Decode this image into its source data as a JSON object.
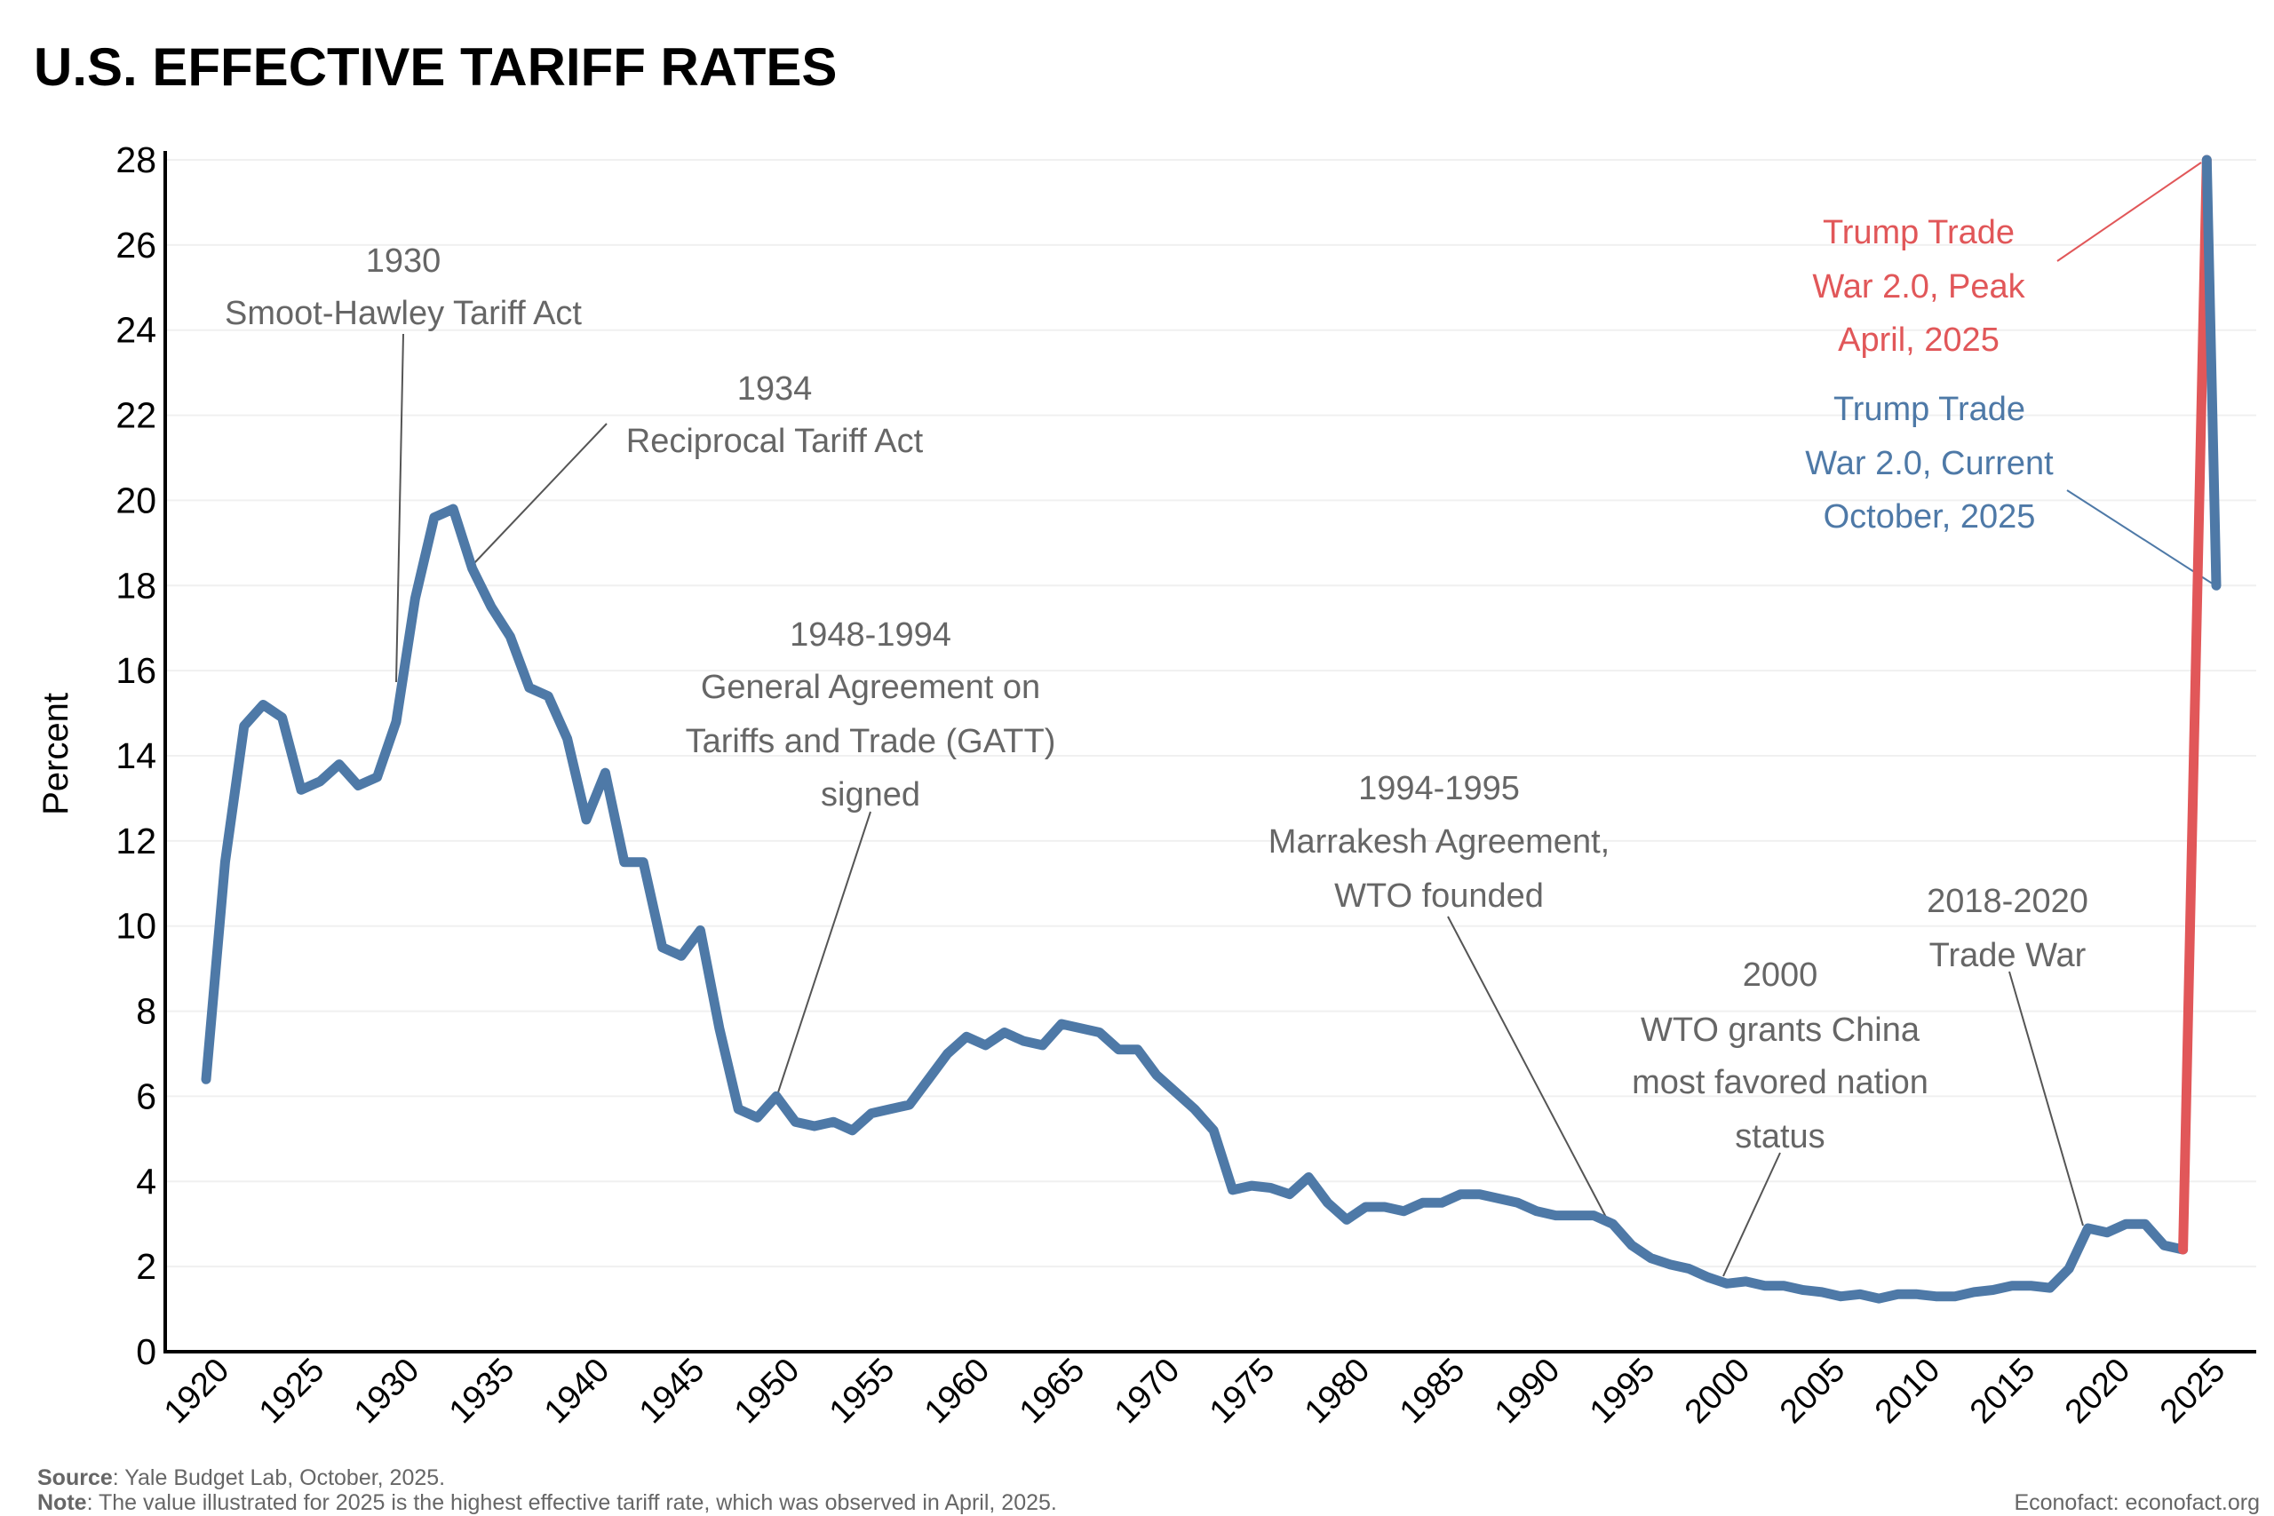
{
  "chart_data": {
    "type": "line",
    "title": "U.S. EFFECTIVE TARIFF RATES",
    "xlabel": "",
    "ylabel": "Percent",
    "ylim": [
      0,
      28
    ],
    "xlim": [
      1920,
      2025
    ],
    "y_ticks": [
      "0",
      "2",
      "4",
      "6",
      "8",
      "10",
      "12",
      "14",
      "16",
      "18",
      "20",
      "22",
      "24",
      "26",
      "28"
    ],
    "x_ticks": [
      "1920",
      "1925",
      "1930",
      "1935",
      "1940",
      "1945",
      "1950",
      "1955",
      "1960",
      "1965",
      "1970",
      "1975",
      "1980",
      "1985",
      "1990",
      "1995",
      "2000",
      "2005",
      "2010",
      "2015",
      "2020",
      "2025"
    ],
    "grid": "horizontal",
    "colors": {
      "historical": "#4e79a7",
      "peak": "#e15759",
      "current": "#4e79a7"
    },
    "series": [
      {
        "key": "historical",
        "x": [
          1920,
          1921,
          1922,
          1923,
          1924,
          1925,
          1926,
          1927,
          1928,
          1929,
          1930,
          1931,
          1932,
          1933,
          1934,
          1935,
          1936,
          1937,
          1938,
          1939,
          1940,
          1941,
          1942,
          1943,
          1944,
          1945,
          1946,
          1947,
          1948,
          1949,
          1950,
          1951,
          1952,
          1953,
          1954,
          1955,
          1956,
          1957,
          1958,
          1959,
          1960,
          1961,
          1962,
          1963,
          1964,
          1965,
          1966,
          1967,
          1968,
          1969,
          1970,
          1971,
          1972,
          1973,
          1974,
          1975,
          1976,
          1977,
          1978,
          1979,
          1980,
          1981,
          1982,
          1983,
          1984,
          1985,
          1986,
          1987,
          1988,
          1989,
          1990,
          1991,
          1992,
          1993,
          1994,
          1995,
          1996,
          1997,
          1998,
          1999,
          2000,
          2001,
          2002,
          2003,
          2004,
          2005,
          2006,
          2007,
          2008,
          2009,
          2010,
          2011,
          2012,
          2013,
          2014,
          2015,
          2016,
          2017,
          2018,
          2019,
          2020,
          2021,
          2022,
          2023,
          2024
        ],
        "y": [
          6.4,
          11.5,
          14.7,
          15.2,
          14.9,
          13.2,
          13.4,
          13.8,
          13.3,
          13.5,
          14.8,
          17.7,
          19.6,
          19.8,
          18.4,
          17.5,
          16.8,
          15.6,
          15.4,
          14.4,
          12.5,
          13.6,
          11.5,
          11.5,
          9.5,
          9.3,
          9.9,
          7.6,
          5.7,
          5.5,
          6.0,
          5.4,
          5.3,
          5.4,
          5.2,
          5.6,
          5.7,
          5.8,
          6.4,
          7.0,
          7.4,
          7.2,
          7.5,
          7.3,
          7.2,
          7.7,
          7.6,
          7.5,
          7.1,
          7.1,
          6.5,
          6.1,
          5.7,
          5.2,
          3.8,
          3.9,
          3.85,
          3.7,
          4.1,
          3.5,
          3.1,
          3.4,
          3.4,
          3.3,
          3.5,
          3.5,
          3.7,
          3.7,
          3.6,
          3.5,
          3.3,
          3.2,
          3.2,
          3.2,
          3.0,
          2.5,
          2.2,
          2.05,
          1.95,
          1.75,
          1.6,
          1.65,
          1.55,
          1.55,
          1.45,
          1.4,
          1.3,
          1.35,
          1.25,
          1.35,
          1.35,
          1.3,
          1.3,
          1.4,
          1.45,
          1.55,
          1.55,
          1.5,
          1.95,
          2.9,
          2.8,
          3.0,
          3.0,
          2.5,
          2.4
        ]
      },
      {
        "key": "peak",
        "x": [
          2024,
          2025.25
        ],
        "y": [
          2.4,
          28.0
        ]
      },
      {
        "key": "current",
        "x": [
          2025.25,
          2025.75
        ],
        "y": [
          28.0,
          18.0
        ]
      }
    ],
    "annotations": {
      "smoot": {
        "lines": [
          "1930",
          "Smoot-Hawley Tariff Act"
        ]
      },
      "reciprocal": {
        "lines": [
          "1934",
          "Reciprocal Tariff Act"
        ]
      },
      "gatt": {
        "lines": [
          "1948-1994",
          "General Agreement on",
          "Tariffs and Trade (GATT)",
          "signed"
        ]
      },
      "wto": {
        "lines": [
          "1994-1995",
          "Marrakesh Agreement,",
          "WTO founded"
        ]
      },
      "china": {
        "lines": [
          "2000",
          "WTO grants China",
          "most favored nation",
          "status"
        ]
      },
      "tradewar": {
        "lines": [
          "2018-2020",
          "Trade War"
        ]
      },
      "peak": {
        "lines": [
          "Trump Trade",
          "War 2.0, Peak",
          "April, 2025"
        ]
      },
      "current": {
        "lines": [
          "Trump Trade",
          "War 2.0, Current",
          "October, 2025"
        ]
      }
    }
  },
  "footer": {
    "source_label": "Source",
    "source_text": ": Yale Budget Lab, October, 2025.",
    "note_label": "Note",
    "note_text": ": The value illustrated for 2025 is the highest effective tariff rate, which was observed in April, 2025.",
    "credit": "Econofact: econofact.org"
  }
}
